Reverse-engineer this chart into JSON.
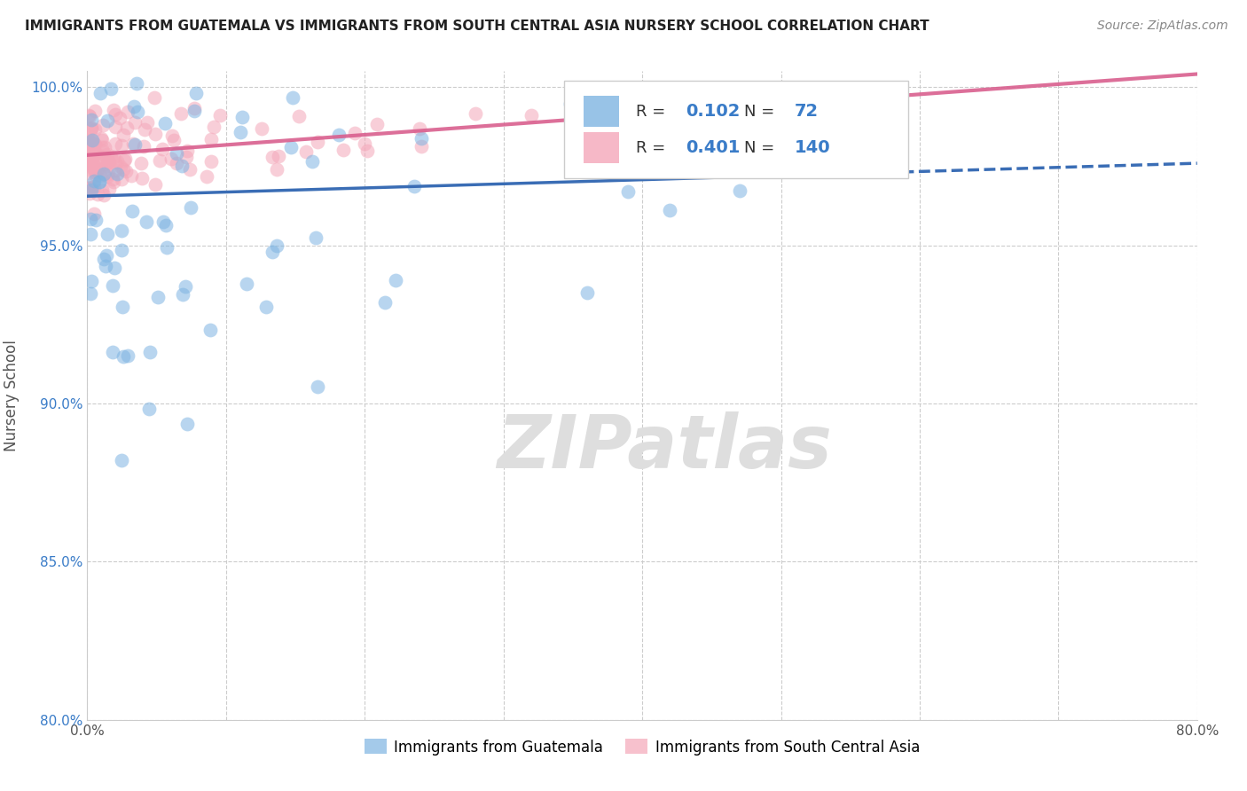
{
  "title": "IMMIGRANTS FROM GUATEMALA VS IMMIGRANTS FROM SOUTH CENTRAL ASIA NURSERY SCHOOL CORRELATION CHART",
  "source": "Source: ZipAtlas.com",
  "ylabel": "Nursery School",
  "xlim": [
    0.0,
    0.8
  ],
  "ylim": [
    0.8,
    1.005
  ],
  "ytick_vals": [
    0.8,
    0.85,
    0.9,
    0.95,
    1.0
  ],
  "ytick_labels": [
    "80.0%",
    "85.0%",
    "90.0%",
    "95.0%",
    "100.0%"
  ],
  "xtick_vals": [
    0.0,
    0.1,
    0.2,
    0.3,
    0.4,
    0.5,
    0.6,
    0.7,
    0.8
  ],
  "xtick_labels": [
    "0.0%",
    "",
    "",
    "",
    "",
    "",
    "",
    "",
    "80.0%"
  ],
  "legend_label1": "Immigrants from Guatemala",
  "legend_label2": "Immigrants from South Central Asia",
  "R1": 0.102,
  "N1": 72,
  "R2": 0.401,
  "N2": 140,
  "color1": "#7EB4E2",
  "color2": "#F4A7B9",
  "line_color1": "#3A6DB5",
  "line_color2": "#D95F8E",
  "background_color": "#ffffff",
  "watermark": "ZIPatlas"
}
